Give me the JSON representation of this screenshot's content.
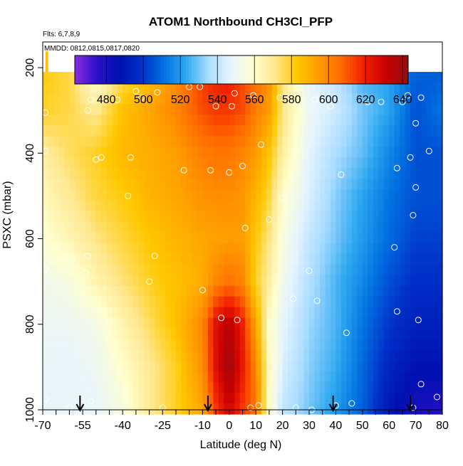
{
  "chart_data": {
    "type": "heatmap",
    "title": "ATOM1 Northbound CH3Cl_PFP",
    "flights_label": "Flts: 6,7,8,9",
    "dates_label": "MMDD: 0812,0815,0817,0820",
    "xlabel": "Latitude (deg N)",
    "ylabel": "PSXC (mbar)",
    "xlim": [
      -70,
      80
    ],
    "ylim": [
      1000,
      140
    ],
    "y_inverted": true,
    "x_ticks": [
      -70,
      -55,
      -40,
      -25,
      -10,
      0,
      10,
      20,
      30,
      40,
      50,
      60,
      70,
      80
    ],
    "y_ticks": [
      200,
      400,
      600,
      800,
      1000
    ],
    "colorbar": {
      "min": 463,
      "max": 643,
      "ticks": [
        480,
        500,
        520,
        540,
        560,
        580,
        600,
        620,
        640
      ],
      "colors": [
        "#8a2be2",
        "#2a10c8",
        "#0010b0",
        "#0030c8",
        "#0070e0",
        "#2ea8f0",
        "#a8dcff",
        "#e6f4ff",
        "#ffffd0",
        "#ffe890",
        "#ffc800",
        "#ff9a00",
        "#ff6a00",
        "#f02000",
        "#c80000",
        "#901010"
      ]
    },
    "grid": {
      "lat_min": -70,
      "lat_max": 80,
      "lat_step": 2,
      "p_min": 210,
      "p_max": 1000,
      "p_step": 25
    },
    "field_anchors": {
      "lats": [
        -70,
        -60,
        -50,
        -40,
        -30,
        -20,
        -10,
        -5,
        0,
        5,
        10,
        15,
        20,
        30,
        40,
        50,
        60,
        70,
        80
      ],
      "pressures": [
        210,
        300,
        400,
        500,
        600,
        700,
        800,
        900,
        1000
      ],
      "values": [
        [
          582,
          578,
          555,
          575,
          585,
          598,
          615,
          620,
          622,
          612,
          608,
          598,
          572,
          547,
          540,
          525,
          522,
          508,
          507
        ],
        [
          580,
          577,
          570,
          585,
          592,
          600,
          612,
          615,
          615,
          612,
          602,
          594,
          572,
          550,
          542,
          530,
          522,
          505,
          512
        ],
        [
          568,
          575,
          580,
          587,
          590,
          594,
          602,
          604,
          604,
          600,
          595,
          584,
          568,
          547,
          536,
          528,
          516,
          505,
          505
        ],
        [
          563,
          570,
          578,
          582,
          588,
          592,
          597,
          598,
          598,
          596,
          588,
          578,
          560,
          545,
          532,
          522,
          512,
          505,
          505
        ],
        [
          558,
          564,
          572,
          578,
          583,
          588,
          592,
          593,
          594,
          594,
          583,
          572,
          556,
          540,
          530,
          520,
          510,
          502,
          502
        ],
        [
          552,
          555,
          565,
          573,
          580,
          585,
          590,
          600,
          605,
          600,
          580,
          568,
          552,
          537,
          526,
          516,
          505,
          498,
          498
        ],
        [
          550,
          550,
          553,
          565,
          575,
          585,
          600,
          625,
          635,
          620,
          592,
          560,
          548,
          534,
          526,
          512,
          500,
          493,
          493
        ],
        [
          548,
          548,
          550,
          560,
          570,
          580,
          598,
          625,
          640,
          622,
          600,
          562,
          545,
          532,
          524,
          510,
          495,
          488,
          488
        ],
        [
          548,
          548,
          548,
          555,
          570,
          580,
          592,
          615,
          630,
          615,
          605,
          560,
          540,
          530,
          520,
          508,
          490,
          480,
          478
        ]
      ]
    },
    "samples": [
      [
        -69,
        305
      ],
      [
        -69,
        395
      ],
      [
        -69,
        670
      ],
      [
        -69,
        975
      ],
      [
        -60,
        650
      ],
      [
        -60,
        995
      ],
      [
        -56,
        1000
      ],
      [
        -53,
        300
      ],
      [
        -52,
        275
      ],
      [
        -53,
        640
      ],
      [
        -54,
        680
      ],
      [
        -52,
        980
      ],
      [
        -50,
        415
      ],
      [
        -48,
        410
      ],
      [
        -45,
        270
      ],
      [
        -42,
        275
      ],
      [
        -38,
        500
      ],
      [
        -37,
        410
      ],
      [
        -35,
        255
      ],
      [
        -33,
        270
      ],
      [
        -30,
        700
      ],
      [
        -28,
        640
      ],
      [
        -27,
        258
      ],
      [
        -25,
        995
      ],
      [
        -20,
        230
      ],
      [
        -17,
        440
      ],
      [
        -15,
        245
      ],
      [
        -11,
        245
      ],
      [
        -10,
        720
      ],
      [
        -7,
        440
      ],
      [
        -5,
        290
      ],
      [
        -3,
        785
      ],
      [
        0,
        445
      ],
      [
        1,
        290
      ],
      [
        2,
        260
      ],
      [
        3,
        790
      ],
      [
        5,
        430
      ],
      [
        6,
        575
      ],
      [
        8,
        995
      ],
      [
        9,
        265
      ],
      [
        11,
        990
      ],
      [
        12,
        380
      ],
      [
        15,
        555
      ],
      [
        17,
        995
      ],
      [
        19,
        270
      ],
      [
        20,
        505
      ],
      [
        24,
        740
      ],
      [
        25,
        995
      ],
      [
        29,
        230
      ],
      [
        30,
        675
      ],
      [
        31,
        1000
      ],
      [
        32,
        275
      ],
      [
        33,
        745
      ],
      [
        38,
        290
      ],
      [
        40,
        990
      ],
      [
        42,
        450
      ],
      [
        44,
        820
      ],
      [
        46,
        985
      ],
      [
        52,
        280
      ],
      [
        57,
        280
      ],
      [
        62,
        620
      ],
      [
        63,
        770
      ],
      [
        63,
        435
      ],
      [
        65,
        280
      ],
      [
        65,
        220
      ],
      [
        67,
        265
      ],
      [
        68,
        410
      ],
      [
        69,
        545
      ],
      [
        69,
        995
      ],
      [
        70,
        330
      ],
      [
        70,
        480
      ],
      [
        71,
        790
      ],
      [
        72,
        940
      ],
      [
        72,
        270
      ],
      [
        75,
        395
      ],
      [
        78,
        970
      ]
    ],
    "arrows_at_lat": [
      -56,
      -8,
      39,
      68
    ]
  }
}
